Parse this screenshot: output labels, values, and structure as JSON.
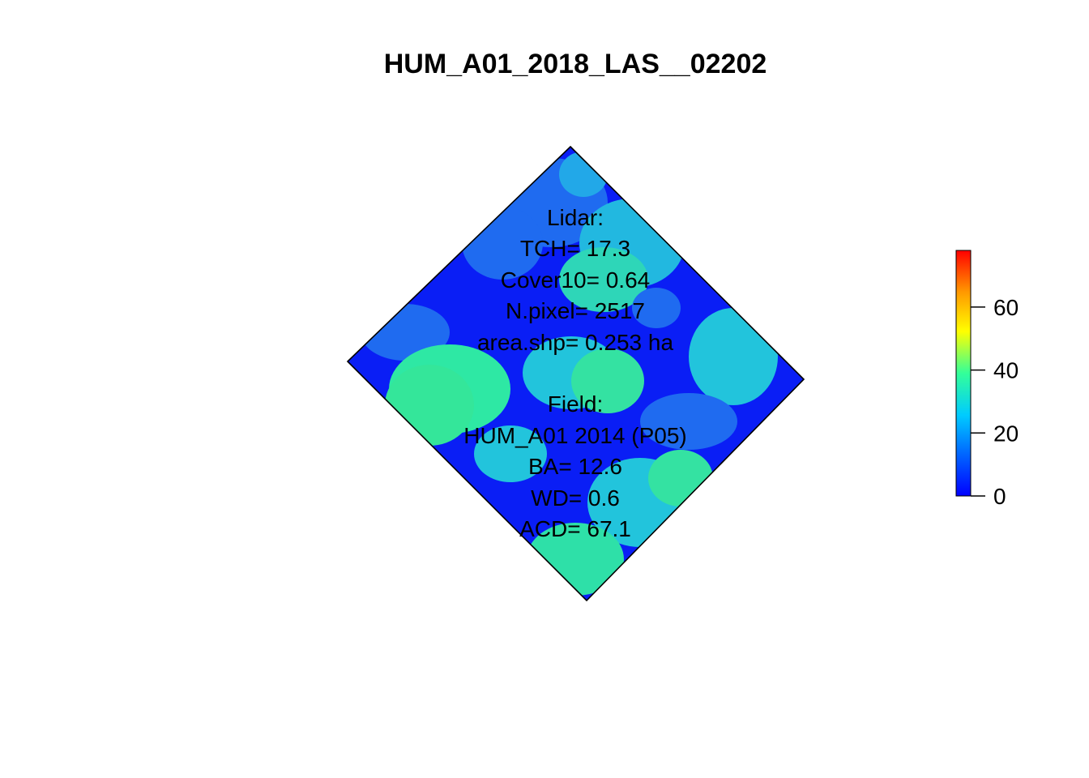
{
  "title": "HUM_A01_2018_LAS__02202",
  "annotations": {
    "lidar_header": "Lidar:",
    "tch": "TCH= 17.3",
    "cover": "Cover10= 0.64",
    "npixel": "N.pixel= 2517",
    "area": "area.shp= 0.253 ha",
    "field_header": "Field:",
    "plot": "HUM_A01 2014 (P05)",
    "ba": "BA= 12.6",
    "wd": "WD= 0.6",
    "acd": "ACD= 67.1"
  },
  "legend": {
    "min": 0,
    "max": 78,
    "ticks": [
      0,
      20,
      40,
      60
    ],
    "tick_labels": [
      "0",
      "20",
      "40",
      "60"
    ],
    "palette": [
      "#0000ff",
      "#0066ff",
      "#00ccff",
      "#33ff99",
      "#ffff00",
      "#ff9900",
      "#ff0000"
    ]
  },
  "colors": {
    "low": "#0a1ef5",
    "mid_low": "#1f6bf0",
    "mid": "#22c4dc",
    "high": "#36e89a",
    "outline": "#000000"
  }
}
